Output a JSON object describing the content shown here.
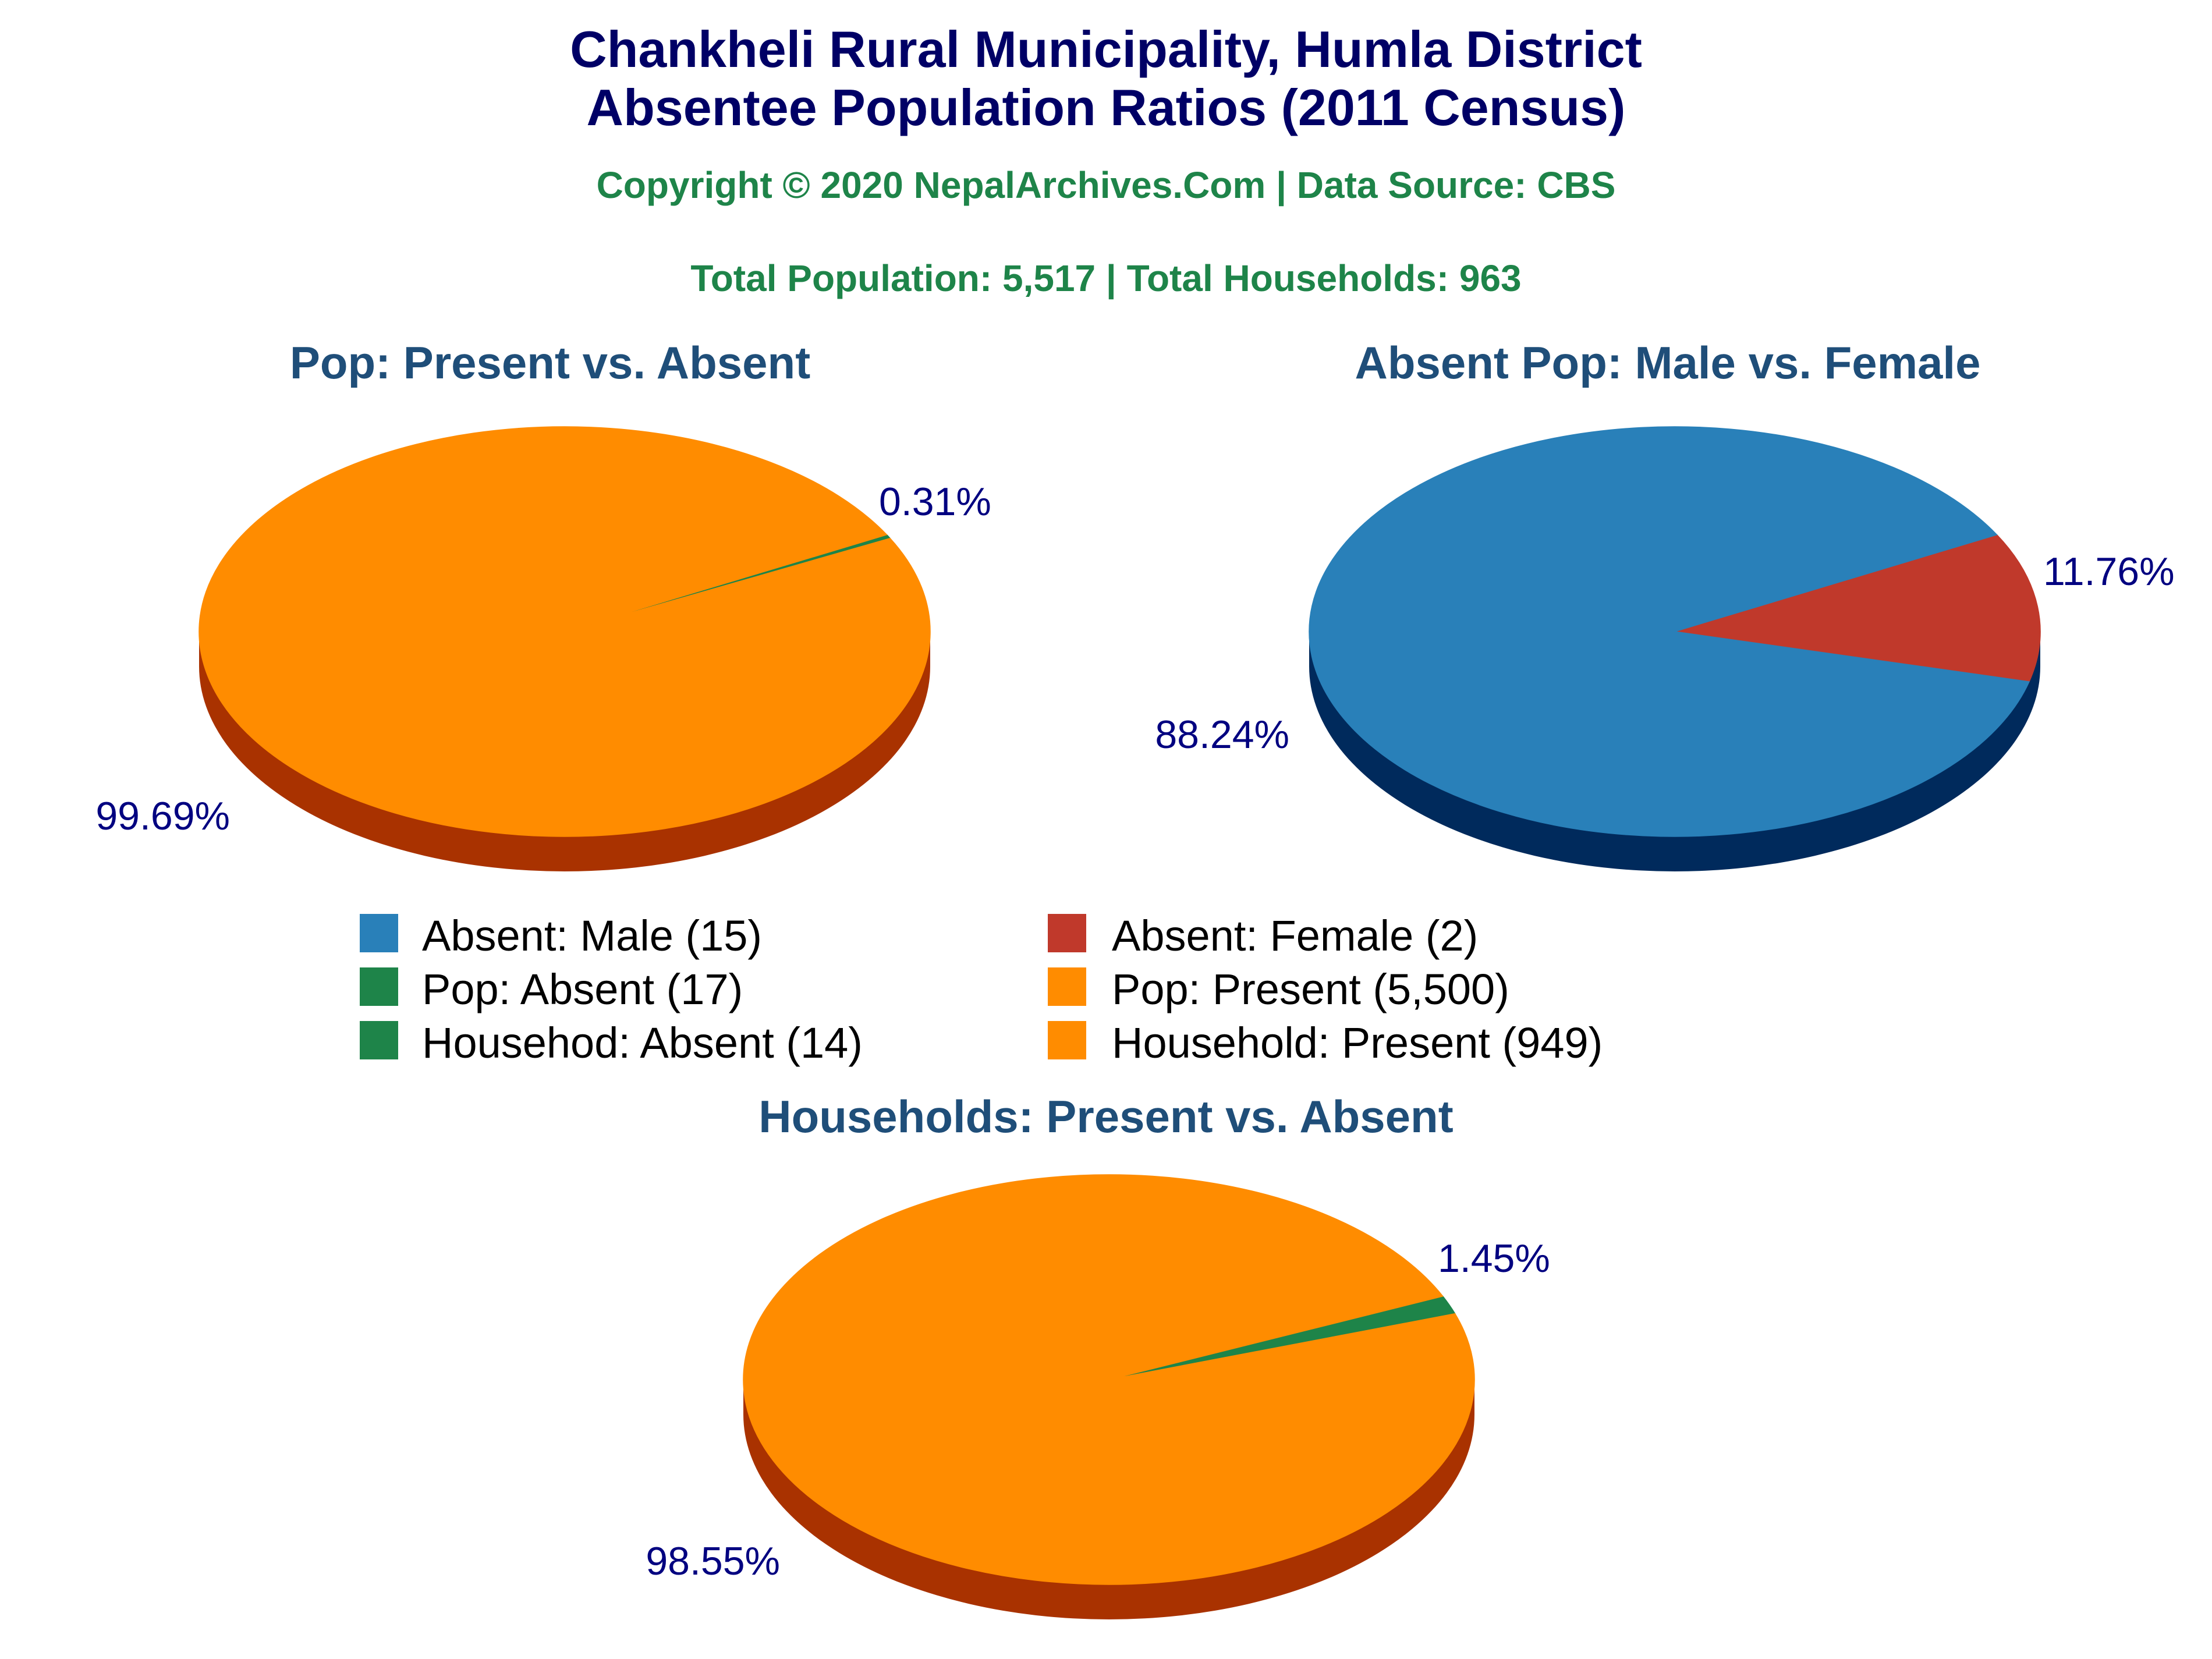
{
  "header": {
    "title_line1": "Chankheli Rural Municipality, Humla District",
    "title_line2": "Absentee Population Ratios (2011 Census)",
    "copyright": "Copyright © 2020 NepalArchives.Com | Data Source: CBS",
    "totals": "Total Population: 5,517 | Total Households: 963"
  },
  "colors": {
    "title": "#000066",
    "subtitle": "#1e8449",
    "pie_title": "#1f4e79",
    "pct_label": "#000080",
    "male": "#2980b9",
    "male_side": "#002a5c",
    "female": "#c0392b",
    "absent": "#1e8449",
    "present": "#ff8c00",
    "present_side": "#a93200"
  },
  "legend": [
    {
      "label": "Absent: Male (15)",
      "color": "#2980b9"
    },
    {
      "label": "Absent: Female (2)",
      "color": "#c0392b"
    },
    {
      "label": "Pop: Absent (17)",
      "color": "#1e8449"
    },
    {
      "label": "Pop: Present (5,500)",
      "color": "#ff8c00"
    },
    {
      "label": "Househod: Absent (14)",
      "color": "#1e8449"
    },
    {
      "label": "Household: Present (949)",
      "color": "#ff8c00"
    }
  ],
  "chart_data": [
    {
      "type": "pie",
      "title": "Pop: Present vs. Absent",
      "slices": [
        {
          "name": "Pop: Absent",
          "value": 17,
          "label": "0.31%",
          "color": "#1e8449"
        },
        {
          "name": "Pop: Present",
          "value": 5500,
          "label": "99.69%",
          "color": "#ff8c00"
        }
      ]
    },
    {
      "type": "pie",
      "title": "Absent Pop: Male vs. Female",
      "slices": [
        {
          "name": "Absent: Female",
          "value": 2,
          "label": "11.76%",
          "color": "#c0392b"
        },
        {
          "name": "Absent: Male",
          "value": 15,
          "label": "88.24%",
          "color": "#2980b9"
        }
      ]
    },
    {
      "type": "pie",
      "title": "Households: Present vs. Absent",
      "slices": [
        {
          "name": "Household: Absent",
          "value": 14,
          "label": "1.45%",
          "color": "#1e8449"
        },
        {
          "name": "Household: Present",
          "value": 949,
          "label": "98.55%",
          "color": "#ff8c00"
        }
      ]
    }
  ]
}
